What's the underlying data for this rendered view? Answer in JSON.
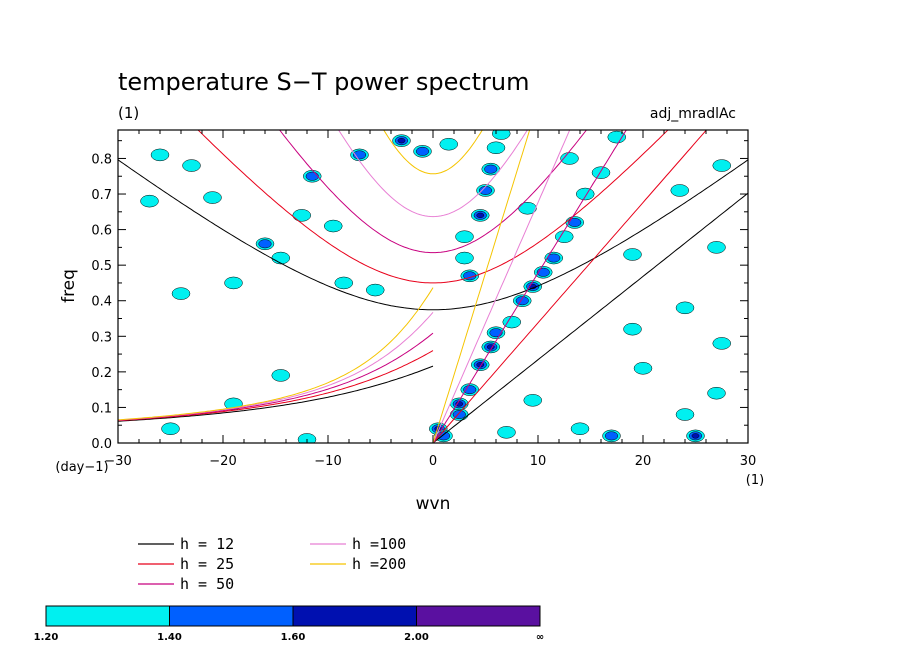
{
  "chart_data": {
    "type": "contour",
    "title": "temperature S−T power spectrum",
    "subtitle_left": "(1)",
    "subtitle_right": "adj_mradlAc",
    "xlabel": "wvn",
    "ylabel": "freq",
    "xunit": "(1)",
    "yunit": "(day−1)",
    "xlim": [
      -30,
      30
    ],
    "ylim": [
      0,
      0.88
    ],
    "xticks": [
      -30,
      -20,
      -10,
      0,
      10,
      20,
      30
    ],
    "xtick_labels": [
      "−30",
      "−20",
      "−10",
      "0",
      "10",
      "20",
      "30"
    ],
    "yticks": [
      0.0,
      0.1,
      0.2,
      0.3,
      0.4,
      0.5,
      0.6,
      0.7,
      0.8
    ],
    "ytick_labels": [
      "0.0",
      "0.1",
      "0.2",
      "0.3",
      "0.4",
      "0.5",
      "0.6",
      "0.7",
      "0.8"
    ],
    "dispersion_curves": [
      {
        "label": "h = 12",
        "h": 12,
        "color": "#000000"
      },
      {
        "label": "h = 25",
        "h": 25,
        "color": "#e8001a"
      },
      {
        "label": "h = 50",
        "h": 50,
        "color": "#c8007f"
      },
      {
        "label": "h =100",
        "h": 100,
        "color": "#e87fd4"
      },
      {
        "label": "h =200",
        "h": 200,
        "color": "#f5c400"
      }
    ],
    "colorbar": {
      "levels": [
        "1.20",
        "1.40",
        "1.60",
        "2.00",
        "∞"
      ],
      "colors": [
        "#00f0f0",
        "#0060ff",
        "#0010b0",
        "#5a10a0"
      ]
    },
    "contour_blobs": [
      {
        "x": 0.5,
        "y": 0.04,
        "level": 3
      },
      {
        "x": 1.0,
        "y": 0.02,
        "level": 2
      },
      {
        "x": 2.5,
        "y": 0.08,
        "level": 2
      },
      {
        "x": 2.5,
        "y": 0.11,
        "level": 3
      },
      {
        "x": 3.5,
        "y": 0.15,
        "level": 2
      },
      {
        "x": 4.5,
        "y": 0.22,
        "level": 3
      },
      {
        "x": 5.5,
        "y": 0.27,
        "level": 3
      },
      {
        "x": 6.0,
        "y": 0.31,
        "level": 2
      },
      {
        "x": 7.5,
        "y": 0.34,
        "level": 1
      },
      {
        "x": 8.5,
        "y": 0.4,
        "level": 2
      },
      {
        "x": 9.5,
        "y": 0.44,
        "level": 3
      },
      {
        "x": 10.5,
        "y": 0.48,
        "level": 2
      },
      {
        "x": 11.5,
        "y": 0.52,
        "level": 2
      },
      {
        "x": 12.5,
        "y": 0.58,
        "level": 1
      },
      {
        "x": 13.5,
        "y": 0.62,
        "level": 2
      },
      {
        "x": 14.5,
        "y": 0.7,
        "level": 1
      },
      {
        "x": 16.0,
        "y": 0.76,
        "level": 1
      },
      {
        "x": 17.5,
        "y": 0.86,
        "level": 1
      },
      {
        "x": 3.5,
        "y": 0.47,
        "level": 2
      },
      {
        "x": 3.0,
        "y": 0.52,
        "level": 1
      },
      {
        "x": 3.0,
        "y": 0.58,
        "level": 1
      },
      {
        "x": 4.5,
        "y": 0.64,
        "level": 3
      },
      {
        "x": 5.0,
        "y": 0.71,
        "level": 2
      },
      {
        "x": 5.5,
        "y": 0.77,
        "level": 2
      },
      {
        "x": 6.0,
        "y": 0.83,
        "level": 1
      },
      {
        "x": 6.5,
        "y": 0.87,
        "level": 1
      },
      {
        "x": -3.0,
        "y": 0.85,
        "level": 3
      },
      {
        "x": -1.0,
        "y": 0.82,
        "level": 2
      },
      {
        "x": 1.5,
        "y": 0.84,
        "level": 1
      },
      {
        "x": -7.0,
        "y": 0.81,
        "level": 2
      },
      {
        "x": -11.5,
        "y": 0.75,
        "level": 2
      },
      {
        "x": -9.5,
        "y": 0.61,
        "level": 1
      },
      {
        "x": -12.5,
        "y": 0.64,
        "level": 1
      },
      {
        "x": -16.0,
        "y": 0.56,
        "level": 2
      },
      {
        "x": -14.5,
        "y": 0.52,
        "level": 1
      },
      {
        "x": -19.0,
        "y": 0.45,
        "level": 1
      },
      {
        "x": -24.0,
        "y": 0.42,
        "level": 1
      },
      {
        "x": -8.5,
        "y": 0.45,
        "level": 1
      },
      {
        "x": -5.5,
        "y": 0.43,
        "level": 1
      },
      {
        "x": -27.0,
        "y": 0.68,
        "level": 1
      },
      {
        "x": -21.0,
        "y": 0.69,
        "level": 1
      },
      {
        "x": -23.0,
        "y": 0.78,
        "level": 1
      },
      {
        "x": -26.0,
        "y": 0.81,
        "level": 1
      },
      {
        "x": -19.0,
        "y": 0.11,
        "level": 1
      },
      {
        "x": -14.5,
        "y": 0.19,
        "level": 1
      },
      {
        "x": -25.0,
        "y": 0.04,
        "level": 1
      },
      {
        "x": -12.0,
        "y": 0.01,
        "level": 1
      },
      {
        "x": 9.0,
        "y": 0.66,
        "level": 1
      },
      {
        "x": 13.0,
        "y": 0.8,
        "level": 1
      },
      {
        "x": 19.0,
        "y": 0.53,
        "level": 1
      },
      {
        "x": 23.5,
        "y": 0.71,
        "level": 1
      },
      {
        "x": 27.5,
        "y": 0.78,
        "level": 1
      },
      {
        "x": 27.0,
        "y": 0.55,
        "level": 1
      },
      {
        "x": 24.0,
        "y": 0.38,
        "level": 1
      },
      {
        "x": 19.0,
        "y": 0.32,
        "level": 1
      },
      {
        "x": 27.5,
        "y": 0.28,
        "level": 1
      },
      {
        "x": 24.0,
        "y": 0.08,
        "level": 1
      },
      {
        "x": 17.0,
        "y": 0.02,
        "level": 2
      },
      {
        "x": 14.0,
        "y": 0.04,
        "level": 1
      },
      {
        "x": 20.0,
        "y": 0.21,
        "level": 1
      },
      {
        "x": 27.0,
        "y": 0.14,
        "level": 1
      },
      {
        "x": 25.0,
        "y": 0.02,
        "level": 3
      },
      {
        "x": 7.0,
        "y": 0.03,
        "level": 1
      },
      {
        "x": 9.5,
        "y": 0.12,
        "level": 1
      }
    ]
  }
}
